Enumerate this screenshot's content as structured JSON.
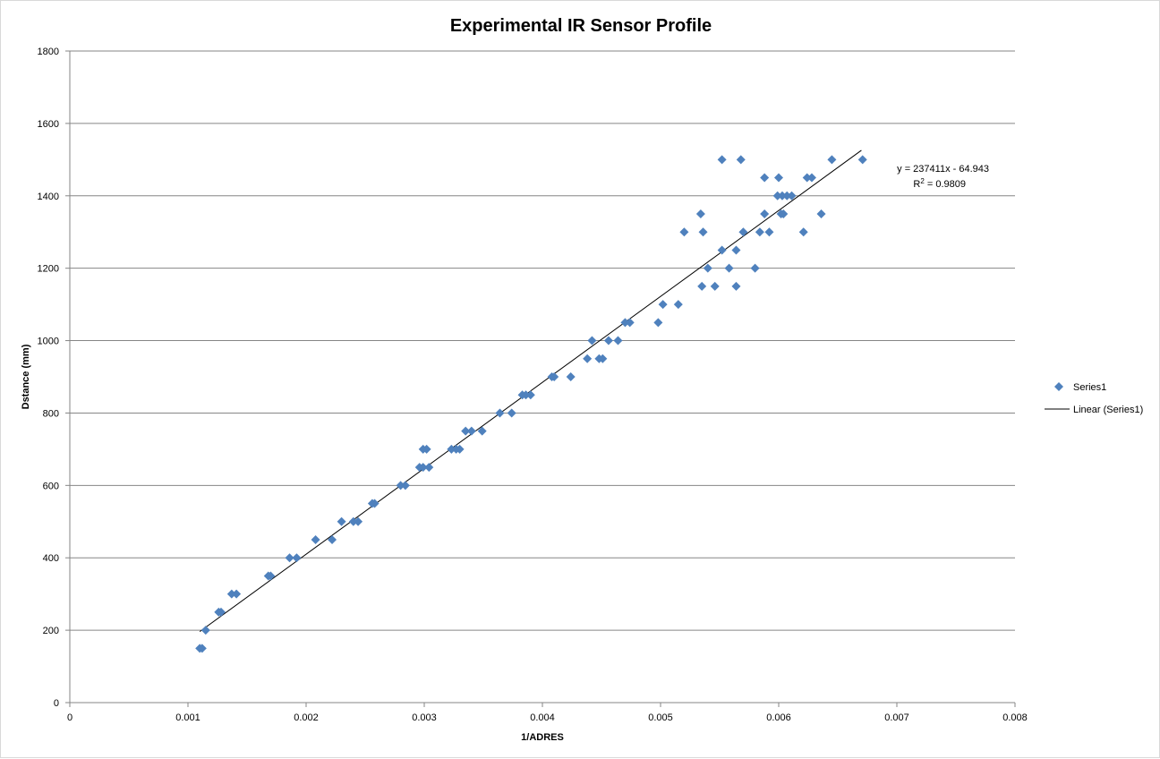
{
  "chart_data": {
    "type": "scatter",
    "title": "Experimental IR Sensor Profile",
    "xlabel": "1/ADRES",
    "ylabel": "Dstance  (mm)",
    "xlim": [
      0,
      0.008
    ],
    "ylim": [
      0,
      1800
    ],
    "x_ticks": [
      "0",
      "0.001",
      "0.002",
      "0.003",
      "0.004",
      "0.005",
      "0.006",
      "0.007",
      "0.008"
    ],
    "y_ticks": [
      "0",
      "200",
      "400",
      "600",
      "800",
      "1000",
      "1200",
      "1400",
      "1600",
      "1800"
    ],
    "grid": "horizontal major gridlines",
    "legend_position": "right",
    "colors": {
      "marker": "#4f81bd",
      "trendline": "#000000",
      "gridline": "#868686"
    },
    "series": [
      {
        "name": "Series1",
        "marker": "diamond",
        "points": [
          [
            0.0011,
            150
          ],
          [
            0.00112,
            150
          ],
          [
            0.00115,
            200
          ],
          [
            0.00126,
            250
          ],
          [
            0.00128,
            250
          ],
          [
            0.00137,
            300
          ],
          [
            0.00141,
            300
          ],
          [
            0.00168,
            350
          ],
          [
            0.0017,
            350
          ],
          [
            0.00186,
            400
          ],
          [
            0.00192,
            400
          ],
          [
            0.00208,
            450
          ],
          [
            0.00222,
            450
          ],
          [
            0.0023,
            500
          ],
          [
            0.0024,
            500
          ],
          [
            0.00244,
            500
          ],
          [
            0.00256,
            550
          ],
          [
            0.00258,
            550
          ],
          [
            0.0028,
            600
          ],
          [
            0.00284,
            600
          ],
          [
            0.00296,
            650
          ],
          [
            0.00299,
            650
          ],
          [
            0.00304,
            650
          ],
          [
            0.00299,
            700
          ],
          [
            0.00302,
            700
          ],
          [
            0.00323,
            700
          ],
          [
            0.00327,
            700
          ],
          [
            0.0033,
            700
          ],
          [
            0.00335,
            750
          ],
          [
            0.0034,
            750
          ],
          [
            0.00349,
            750
          ],
          [
            0.00364,
            800
          ],
          [
            0.00374,
            800
          ],
          [
            0.00383,
            850
          ],
          [
            0.00386,
            850
          ],
          [
            0.0039,
            850
          ],
          [
            0.00408,
            900
          ],
          [
            0.0041,
            900
          ],
          [
            0.00424,
            900
          ],
          [
            0.00438,
            950
          ],
          [
            0.00448,
            950
          ],
          [
            0.00451,
            950
          ],
          [
            0.00442,
            1000
          ],
          [
            0.00456,
            1000
          ],
          [
            0.00464,
            1000
          ],
          [
            0.0047,
            1050
          ],
          [
            0.00474,
            1050
          ],
          [
            0.00498,
            1050
          ],
          [
            0.00502,
            1100
          ],
          [
            0.00515,
            1100
          ],
          [
            0.00535,
            1150
          ],
          [
            0.00546,
            1150
          ],
          [
            0.00564,
            1150
          ],
          [
            0.0054,
            1200
          ],
          [
            0.00558,
            1200
          ],
          [
            0.0058,
            1200
          ],
          [
            0.00552,
            1250
          ],
          [
            0.00564,
            1250
          ],
          [
            0.0052,
            1300
          ],
          [
            0.00536,
            1300
          ],
          [
            0.0057,
            1300
          ],
          [
            0.00584,
            1300
          ],
          [
            0.00592,
            1300
          ],
          [
            0.00621,
            1300
          ],
          [
            0.00534,
            1350
          ],
          [
            0.00588,
            1350
          ],
          [
            0.00602,
            1350
          ],
          [
            0.00604,
            1350
          ],
          [
            0.00636,
            1350
          ],
          [
            0.00599,
            1400
          ],
          [
            0.00603,
            1400
          ],
          [
            0.00607,
            1400
          ],
          [
            0.00611,
            1400
          ],
          [
            0.00588,
            1450
          ],
          [
            0.006,
            1450
          ],
          [
            0.00624,
            1450
          ],
          [
            0.00628,
            1450
          ],
          [
            0.00552,
            1500
          ],
          [
            0.00568,
            1500
          ],
          [
            0.00645,
            1500
          ],
          [
            0.00671,
            1500
          ]
        ]
      }
    ],
    "trendline": {
      "name": "Linear (Series1)",
      "slope": 237411,
      "intercept": -64.943,
      "x_range": [
        0.0011,
        0.0067
      ],
      "equation_label": "y = 237411x - 64.943",
      "r2_prefix": "R",
      "r2_exponent": "2",
      "r2_suffix": " = 0.9809"
    }
  }
}
